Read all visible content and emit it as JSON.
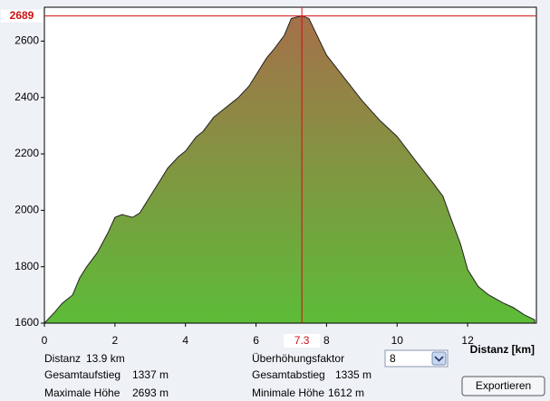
{
  "chart_data": {
    "type": "area",
    "x": [
      0,
      0.3,
      0.5,
      0.8,
      1.0,
      1.2,
      1.5,
      1.8,
      2.0,
      2.2,
      2.5,
      2.7,
      3.0,
      3.3,
      3.5,
      3.8,
      4.0,
      4.3,
      4.5,
      4.8,
      5.0,
      5.3,
      5.5,
      5.8,
      6.0,
      6.3,
      6.5,
      6.8,
      7.0,
      7.3,
      7.5,
      8.0,
      8.5,
      9.0,
      9.5,
      10.0,
      10.5,
      11.0,
      11.3,
      11.5,
      11.8,
      12.0,
      12.3,
      12.6,
      13.0,
      13.3,
      13.6,
      13.9
    ],
    "values": [
      1600,
      1640,
      1670,
      1700,
      1760,
      1800,
      1850,
      1920,
      1975,
      1985,
      1975,
      1990,
      2050,
      2110,
      2150,
      2190,
      2210,
      2260,
      2280,
      2330,
      2350,
      2380,
      2400,
      2440,
      2480,
      2540,
      2570,
      2620,
      2680,
      2690,
      2680,
      2550,
      2470,
      2390,
      2320,
      2262,
      2180,
      2100,
      2050,
      1980,
      1880,
      1790,
      1730,
      1700,
      1672,
      1655,
      1630,
      1612
    ],
    "xlim": [
      0,
      13.95
    ],
    "ylim": [
      1600,
      2720
    ],
    "xticks": [
      0,
      2,
      4,
      6,
      8,
      10,
      12
    ],
    "yticks": [
      1600,
      1800,
      2000,
      2200,
      2400,
      2600
    ],
    "xlabel": "Distanz [km]",
    "cursor": {
      "x": 7.3,
      "y": 2689
    },
    "fill_top": "#a5704a",
    "fill_bottom": "#5cbc38",
    "cursor_color": "#cc1111"
  },
  "panel": {
    "stats": [
      {
        "label": "Distanz",
        "value": "13.9 km"
      },
      {
        "label": "Gesamtaufstieg",
        "value": "1337 m"
      },
      {
        "label": "Maximale Höhe",
        "value": "2693 m"
      },
      {
        "label": "Gesamtabstieg",
        "value": "1335 m"
      },
      {
        "label": "Minimale Höhe",
        "value": "1612 m"
      }
    ],
    "factor_label": "Überhöhungsfaktor",
    "factor_value": "8",
    "button": "Exportieren"
  }
}
